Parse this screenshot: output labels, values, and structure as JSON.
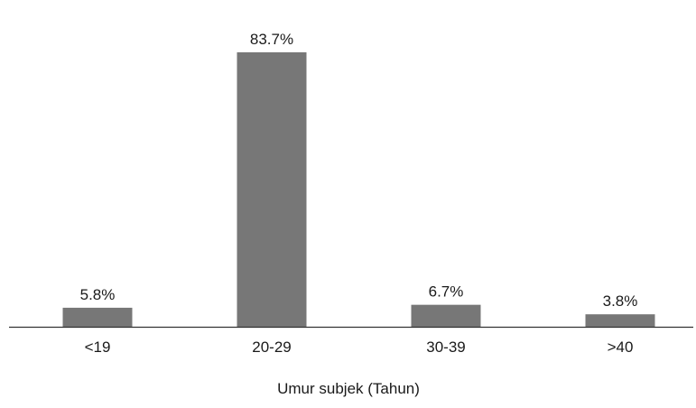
{
  "chart_data": {
    "type": "bar",
    "categories": [
      "<19",
      "20-29",
      "30-39",
      ">40"
    ],
    "values": [
      5.8,
      83.7,
      6.7,
      3.8
    ],
    "value_labels": [
      "5.8%",
      "83.7%",
      "6.7%",
      "3.8%"
    ],
    "title": "",
    "xlabel": "Umur subjek (Tahun)",
    "ylabel": "",
    "ylim": [
      0,
      90
    ],
    "grid": false,
    "legend": "none",
    "bar_color": "#777777",
    "axis_color": "#333333"
  }
}
